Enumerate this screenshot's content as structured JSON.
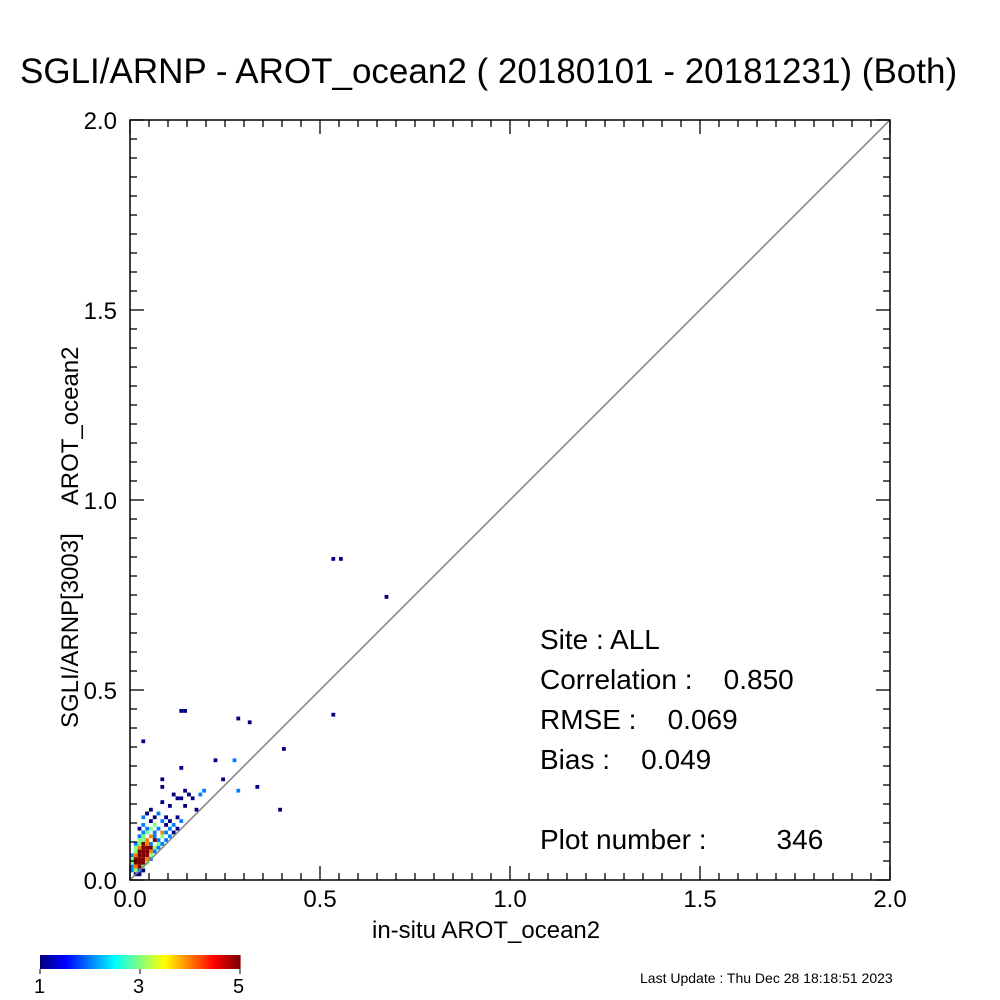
{
  "title": "SGLI/ARNP - AROT_ocean2 ( 20180101 - 20181231) (Both)",
  "stats": {
    "site": "Site : ALL",
    "correlation_label": "Correlation :",
    "correlation": "0.850",
    "rmse_label": "RMSE :",
    "rmse": "0.069",
    "bias_label": "Bias :",
    "bias": "0.049",
    "plot_number_label": "Plot number :",
    "plot_number": "346"
  },
  "colorbar": {
    "ticks": [
      "1",
      "3",
      "5"
    ],
    "range": [
      1,
      5
    ],
    "colormap": "jet"
  },
  "last_update": "Last Update : Thu Dec 28 18:18:51 2023",
  "colors": {
    "one_to_one_line": "#808080",
    "axes": "#000000"
  },
  "chart_data": {
    "type": "heatmap",
    "title": "SGLI/ARNP - AROT_ocean2 ( 20180101 - 20181231) (Both)",
    "xlabel": "in-situ AROT_ocean2",
    "ylabel_parts": [
      "SGLI/ARNP[3003]",
      "AROT_ocean2"
    ],
    "xlim": [
      0.0,
      2.0
    ],
    "ylim": [
      0.0,
      2.0
    ],
    "xticks": [
      "0.0",
      "0.5",
      "1.0",
      "1.5",
      "2.0"
    ],
    "yticks": [
      "0.0",
      "0.5",
      "1.0",
      "1.5",
      "2.0"
    ],
    "reference_line": "y = x",
    "bin_size": 0.01,
    "cells": [
      [
        0.53,
        0.84,
        1
      ],
      [
        0.55,
        0.84,
        1
      ],
      [
        0.67,
        0.74,
        1
      ],
      [
        0.28,
        0.42,
        1
      ],
      [
        0.31,
        0.41,
        1
      ],
      [
        0.53,
        0.43,
        1
      ],
      [
        0.13,
        0.44,
        1
      ],
      [
        0.14,
        0.44,
        1
      ],
      [
        0.03,
        0.36,
        1
      ],
      [
        0.4,
        0.34,
        1
      ],
      [
        0.13,
        0.29,
        1
      ],
      [
        0.22,
        0.31,
        1
      ],
      [
        0.27,
        0.31,
        2
      ],
      [
        0.08,
        0.26,
        1
      ],
      [
        0.24,
        0.26,
        1
      ],
      [
        0.08,
        0.24,
        1
      ],
      [
        0.33,
        0.24,
        1
      ],
      [
        0.28,
        0.23,
        2
      ],
      [
        0.39,
        0.18,
        1
      ],
      [
        0.19,
        0.23,
        2
      ],
      [
        0.18,
        0.22,
        2
      ],
      [
        0.16,
        0.21,
        1
      ],
      [
        0.12,
        0.21,
        1
      ],
      [
        0.13,
        0.21,
        1
      ],
      [
        0.15,
        0.22,
        1
      ],
      [
        0.14,
        0.23,
        1
      ],
      [
        0.11,
        0.22,
        1
      ],
      [
        0.08,
        0.2,
        1
      ],
      [
        0.1,
        0.19,
        1
      ],
      [
        0.14,
        0.19,
        1
      ],
      [
        0.17,
        0.18,
        1
      ],
      [
        0.05,
        0.18,
        1
      ],
      [
        0.04,
        0.17,
        1
      ],
      [
        0.07,
        0.17,
        2
      ],
      [
        0.09,
        0.16,
        1
      ],
      [
        0.12,
        0.16,
        1
      ],
      [
        0.03,
        0.16,
        2
      ],
      [
        0.06,
        0.16,
        1
      ],
      [
        0.08,
        0.15,
        2
      ],
      [
        0.1,
        0.15,
        1
      ],
      [
        0.13,
        0.15,
        2
      ],
      [
        0.05,
        0.15,
        1
      ],
      [
        0.03,
        0.14,
        2
      ],
      [
        0.04,
        0.13,
        2
      ],
      [
        0.06,
        0.14,
        3
      ],
      [
        0.09,
        0.14,
        1
      ],
      [
        0.11,
        0.14,
        2
      ],
      [
        0.12,
        0.13,
        1
      ],
      [
        0.02,
        0.13,
        1
      ],
      [
        0.05,
        0.13,
        3
      ],
      [
        0.07,
        0.13,
        2
      ],
      [
        0.08,
        0.12,
        4
      ],
      [
        0.1,
        0.13,
        2
      ],
      [
        0.03,
        0.12,
        2
      ],
      [
        0.04,
        0.12,
        3
      ],
      [
        0.06,
        0.12,
        2
      ],
      [
        0.09,
        0.12,
        2
      ],
      [
        0.11,
        0.12,
        1
      ],
      [
        0.02,
        0.11,
        2
      ],
      [
        0.03,
        0.11,
        3
      ],
      [
        0.05,
        0.11,
        4
      ],
      [
        0.06,
        0.11,
        2
      ],
      [
        0.08,
        0.11,
        3
      ],
      [
        0.1,
        0.11,
        2
      ],
      [
        0.02,
        0.1,
        3
      ],
      [
        0.03,
        0.1,
        3
      ],
      [
        0.04,
        0.1,
        4
      ],
      [
        0.06,
        0.1,
        5
      ],
      [
        0.07,
        0.1,
        2
      ],
      [
        0.09,
        0.1,
        2
      ],
      [
        0.01,
        0.09,
        2
      ],
      [
        0.02,
        0.09,
        3
      ],
      [
        0.03,
        0.09,
        5
      ],
      [
        0.04,
        0.09,
        4
      ],
      [
        0.05,
        0.09,
        2
      ],
      [
        0.07,
        0.09,
        3
      ],
      [
        0.08,
        0.09,
        2
      ],
      [
        0.01,
        0.08,
        3
      ],
      [
        0.02,
        0.08,
        4
      ],
      [
        0.03,
        0.08,
        5
      ],
      [
        0.04,
        0.08,
        5
      ],
      [
        0.05,
        0.08,
        5
      ],
      [
        0.06,
        0.08,
        3
      ],
      [
        0.07,
        0.08,
        2
      ],
      [
        0.01,
        0.07,
        3
      ],
      [
        0.02,
        0.07,
        5
      ],
      [
        0.03,
        0.07,
        5
      ],
      [
        0.04,
        0.07,
        5
      ],
      [
        0.05,
        0.07,
        4
      ],
      [
        0.06,
        0.07,
        2
      ],
      [
        0.0,
        0.06,
        2
      ],
      [
        0.01,
        0.06,
        4
      ],
      [
        0.02,
        0.06,
        5
      ],
      [
        0.03,
        0.06,
        5
      ],
      [
        0.04,
        0.06,
        5
      ],
      [
        0.05,
        0.06,
        3
      ],
      [
        0.0,
        0.05,
        3
      ],
      [
        0.01,
        0.05,
        5
      ],
      [
        0.02,
        0.05,
        5
      ],
      [
        0.03,
        0.05,
        5
      ],
      [
        0.04,
        0.05,
        4
      ],
      [
        0.05,
        0.05,
        2
      ],
      [
        0.0,
        0.04,
        3
      ],
      [
        0.01,
        0.04,
        5
      ],
      [
        0.02,
        0.04,
        5
      ],
      [
        0.03,
        0.04,
        5
      ],
      [
        0.04,
        0.04,
        3
      ],
      [
        0.0,
        0.03,
        2
      ],
      [
        0.01,
        0.03,
        4
      ],
      [
        0.02,
        0.03,
        5
      ],
      [
        0.03,
        0.03,
        3
      ],
      [
        0.0,
        0.02,
        2
      ],
      [
        0.01,
        0.02,
        3
      ],
      [
        0.02,
        0.02,
        2
      ],
      [
        0.03,
        0.02,
        1
      ],
      [
        0.01,
        0.01,
        1
      ],
      [
        0.02,
        0.01,
        1
      ]
    ]
  }
}
